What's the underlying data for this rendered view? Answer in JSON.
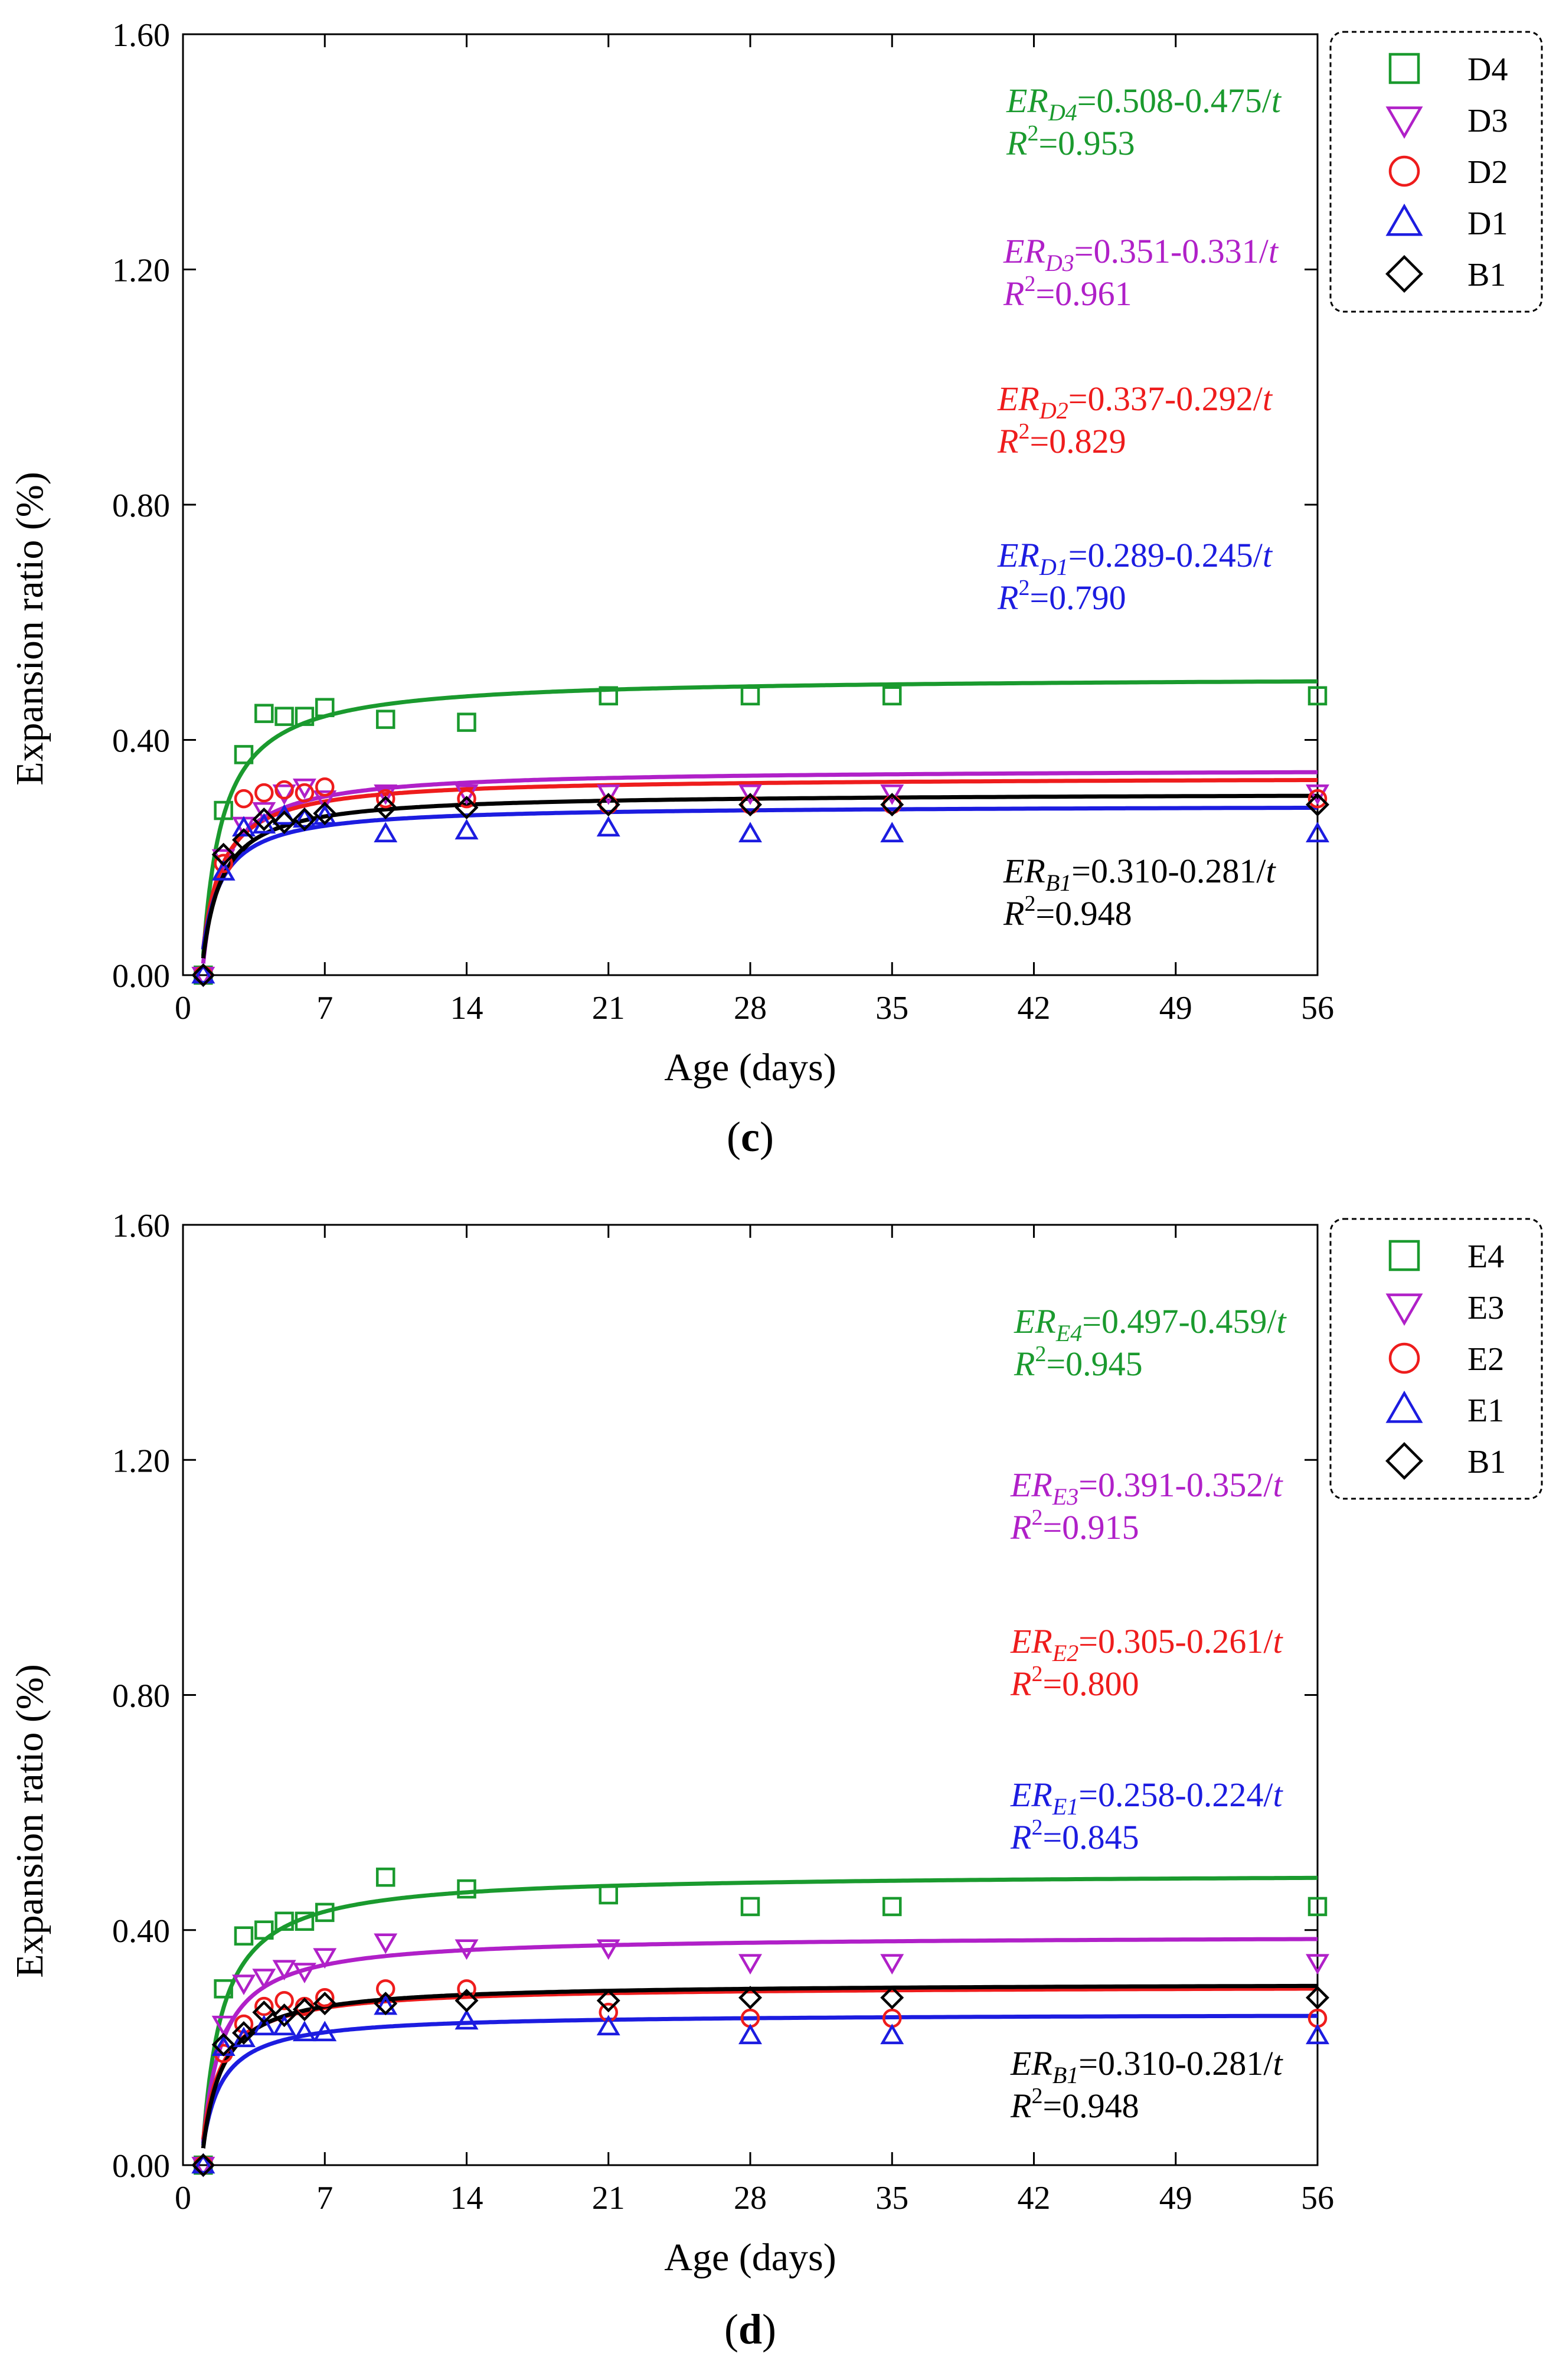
{
  "colors": {
    "green": "#1a9a2e",
    "magenta": "#b020c8",
    "red": "#ee1c1c",
    "blue": "#1c1ce0",
    "black": "#000000"
  },
  "chart_data": [
    {
      "panel": "c",
      "panel_label": "c",
      "type": "scatter",
      "xlabel": "Age (days)",
      "ylabel": "Expansion ratio (%)",
      "xlim": [
        0,
        56
      ],
      "ylim": [
        0,
        1.6
      ],
      "xticks": [
        0,
        7,
        14,
        21,
        28,
        35,
        42,
        49,
        56
      ],
      "yticks": [
        0,
        0.4,
        0.8,
        1.2,
        1.6
      ],
      "xtick_labels": [
        "0",
        "7",
        "14",
        "21",
        "28",
        "35",
        "42",
        "49",
        "56"
      ],
      "ytick_labels": [
        "0.00",
        "0.40",
        "0.80",
        "1.20",
        "1.60"
      ],
      "legend_position": "top-right",
      "x": [
        1,
        2,
        3,
        4,
        5,
        6,
        7,
        10,
        14,
        21,
        28,
        35,
        56
      ],
      "series": [
        {
          "name": "D4",
          "marker": "square",
          "color": "green",
          "values": [
            0.0,
            0.28,
            0.375,
            0.445,
            0.44,
            0.44,
            0.455,
            0.435,
            0.43,
            0.475,
            0.475,
            0.475,
            0.475
          ],
          "fit": {
            "a": 0.508,
            "b": 0.475,
            "r2": "0.953",
            "label_main": "ER",
            "label_sub": "D4",
            "label_rest": "=0.508-0.475/",
            "label_t": "t",
            "r2_label": "R",
            "r2_sup": "2",
            "r2_value": "=0.953"
          }
        },
        {
          "name": "D3",
          "marker": "triangle-down",
          "color": "magenta",
          "values": [
            0.0,
            0.2,
            0.255,
            0.28,
            0.31,
            0.32,
            0.3,
            0.31,
            0.31,
            0.31,
            0.31,
            0.31,
            0.31
          ],
          "fit": {
            "a": 0.351,
            "b": 0.331,
            "r2": "0.961",
            "label_main": "ER",
            "label_sub": "D3",
            "label_rest": "=0.351-0.331/",
            "label_t": "t",
            "r2_label": "R",
            "r2_sup": "2",
            "r2_value": "=0.961"
          }
        },
        {
          "name": "D2",
          "marker": "circle",
          "color": "red",
          "values": [
            0.0,
            0.19,
            0.3,
            0.31,
            0.315,
            0.31,
            0.32,
            0.3,
            0.3,
            0.29,
            0.29,
            0.29,
            0.3
          ],
          "fit": {
            "a": 0.337,
            "b": 0.292,
            "r2": "0.829",
            "label_main": "ER",
            "label_sub": "D2",
            "label_rest": "=0.337-0.292/",
            "label_t": "t",
            "r2_label": "R",
            "r2_sup": "2",
            "r2_value": "=0.829"
          }
        },
        {
          "name": "D1",
          "marker": "triangle-up",
          "color": "blue",
          "values": [
            0.0,
            0.175,
            0.25,
            0.255,
            0.27,
            0.265,
            0.27,
            0.24,
            0.245,
            0.25,
            0.24,
            0.24,
            0.24
          ],
          "fit": {
            "a": 0.289,
            "b": 0.245,
            "r2": "0.790",
            "label_main": "ER",
            "label_sub": "D1",
            "label_rest": "=0.289-0.245/",
            "label_t": "t",
            "r2_label": "R",
            "r2_sup": "2",
            "r2_value": "=0.790"
          }
        },
        {
          "name": "B1",
          "marker": "diamond",
          "color": "black",
          "values": [
            0.0,
            0.205,
            0.23,
            0.265,
            0.26,
            0.265,
            0.275,
            0.285,
            0.285,
            0.29,
            0.29,
            0.29,
            0.29
          ],
          "fit": {
            "a": 0.31,
            "b": 0.281,
            "r2": "0.948",
            "label_main": "ER",
            "label_sub": "B1",
            "label_rest": "=0.310-0.281/",
            "label_t": "t",
            "r2_label": "R",
            "r2_sup": "2",
            "r2_value": "=0.948"
          }
        }
      ]
    },
    {
      "panel": "d",
      "panel_label": "d",
      "type": "scatter",
      "xlabel": "Age (days)",
      "ylabel": "Expansion ratio (%)",
      "xlim": [
        0,
        56
      ],
      "ylim": [
        0,
        1.6
      ],
      "xticks": [
        0,
        7,
        14,
        21,
        28,
        35,
        42,
        49,
        56
      ],
      "yticks": [
        0,
        0.4,
        0.8,
        1.2,
        1.6
      ],
      "xtick_labels": [
        "0",
        "7",
        "14",
        "21",
        "28",
        "35",
        "42",
        "49",
        "56"
      ],
      "ytick_labels": [
        "0.00",
        "0.40",
        "0.80",
        "1.20",
        "1.60"
      ],
      "legend_position": "top-right",
      "x": [
        1,
        2,
        3,
        4,
        5,
        6,
        7,
        10,
        14,
        21,
        28,
        35,
        56
      ],
      "series": [
        {
          "name": "E4",
          "marker": "square",
          "color": "green",
          "values": [
            0.0,
            0.3,
            0.39,
            0.4,
            0.415,
            0.415,
            0.43,
            0.49,
            0.47,
            0.46,
            0.44,
            0.44,
            0.44
          ],
          "fit": {
            "a": 0.497,
            "b": 0.459,
            "r2": "0.945",
            "label_main": "ER",
            "label_sub": "E4",
            "label_rest": "=0.497-0.459/",
            "label_t": "t",
            "r2_label": "R",
            "r2_sup": "2",
            "r2_value": "=0.945"
          }
        },
        {
          "name": "E3",
          "marker": "triangle-down",
          "color": "magenta",
          "values": [
            0.0,
            0.24,
            0.31,
            0.32,
            0.335,
            0.33,
            0.355,
            0.38,
            0.37,
            0.37,
            0.345,
            0.345,
            0.345
          ],
          "fit": {
            "a": 0.391,
            "b": 0.352,
            "r2": "0.915",
            "label_main": "ER",
            "label_sub": "E3",
            "label_rest": "=0.391-0.352/",
            "label_t": "t",
            "r2_label": "R",
            "r2_sup": "2",
            "r2_value": "=0.915"
          }
        },
        {
          "name": "E2",
          "marker": "circle",
          "color": "red",
          "values": [
            0.0,
            0.19,
            0.24,
            0.27,
            0.28,
            0.27,
            0.285,
            0.3,
            0.3,
            0.26,
            0.25,
            0.25,
            0.25
          ],
          "fit": {
            "a": 0.305,
            "b": 0.261,
            "r2": "0.800",
            "label_main": "ER",
            "label_sub": "E2",
            "label_rest": "=0.305-0.261/",
            "label_t": "t",
            "r2_label": "R",
            "r2_sup": "2",
            "r2_value": "=0.800"
          }
        },
        {
          "name": "E1",
          "marker": "triangle-up",
          "color": "blue",
          "values": [
            0.0,
            0.2,
            0.215,
            0.235,
            0.235,
            0.225,
            0.225,
            0.27,
            0.245,
            0.235,
            0.22,
            0.22,
            0.22
          ],
          "fit": {
            "a": 0.258,
            "b": 0.224,
            "r2": "0.845",
            "label_main": "ER",
            "label_sub": "E1",
            "label_rest": "=0.258-0.224/",
            "label_t": "t",
            "r2_label": "R",
            "r2_sup": "2",
            "r2_value": "=0.845"
          }
        },
        {
          "name": "B1",
          "marker": "diamond",
          "color": "black",
          "values": [
            0.0,
            0.205,
            0.225,
            0.26,
            0.255,
            0.265,
            0.275,
            0.275,
            0.28,
            0.28,
            0.285,
            0.285,
            0.285
          ],
          "fit": {
            "a": 0.31,
            "b": 0.281,
            "r2": "0.948",
            "label_main": "ER",
            "label_sub": "B1",
            "label_rest": "=0.310-0.281/",
            "label_t": "t",
            "r2_label": "R",
            "r2_sup": "2",
            "r2_value": "=0.948"
          }
        }
      ]
    }
  ]
}
